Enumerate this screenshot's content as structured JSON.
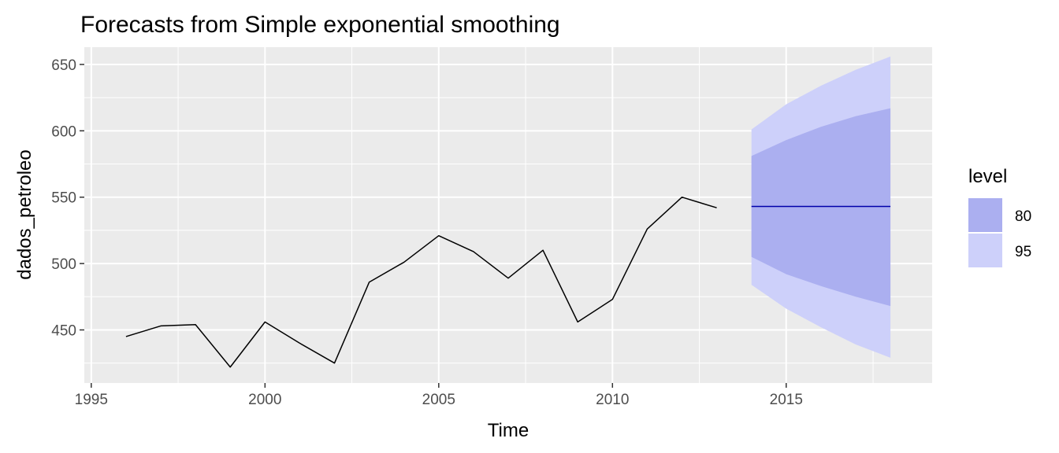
{
  "chart_data": {
    "type": "line",
    "title": "Forecasts from Simple exponential smoothing",
    "xlabel": "Time",
    "ylabel": "dados_petroleo",
    "xlim": [
      1994.8,
      2019.2
    ],
    "ylim": [
      410,
      663
    ],
    "x_ticks": [
      1995,
      2000,
      2005,
      2010,
      2015
    ],
    "x_tick_labels": [
      "1995",
      "2000",
      "2005",
      "2010",
      "2015"
    ],
    "y_ticks": [
      450,
      500,
      550,
      600,
      650
    ],
    "y_tick_labels": [
      "450",
      "500",
      "550",
      "600",
      "650"
    ],
    "grid": true,
    "observed": {
      "x": [
        1996,
        1997,
        1998,
        1999,
        2000,
        2001,
        2002,
        2003,
        2004,
        2005,
        2006,
        2007,
        2008,
        2009,
        2010,
        2011,
        2012,
        2013
      ],
      "y": [
        445,
        453,
        454,
        422,
        456,
        440,
        425,
        486,
        501,
        521,
        509,
        489,
        510,
        456,
        473,
        526,
        550,
        542
      ]
    },
    "forecast": {
      "x": [
        2014,
        2015,
        2016,
        2017,
        2018
      ],
      "mean": [
        543,
        543,
        543,
        543,
        543
      ],
      "lo80": [
        505,
        492,
        483,
        475,
        468
      ],
      "hi80": [
        581,
        593,
        603,
        611,
        617
      ],
      "lo95": [
        484,
        466,
        452,
        439,
        429
      ],
      "hi95": [
        601,
        620,
        634,
        646,
        656
      ]
    },
    "legend": {
      "title": "level",
      "position": "right",
      "entries": [
        {
          "label": "80",
          "color": "#abaff0"
        },
        {
          "label": "95",
          "color": "#cdd0fa"
        }
      ]
    },
    "colors": {
      "panel": "#ebebeb",
      "grid_major": "#ffffff",
      "observed_line": "#000000",
      "forecast_line": "#0000aa",
      "band80": "#abaff0",
      "band95": "#cdd0fa"
    }
  }
}
